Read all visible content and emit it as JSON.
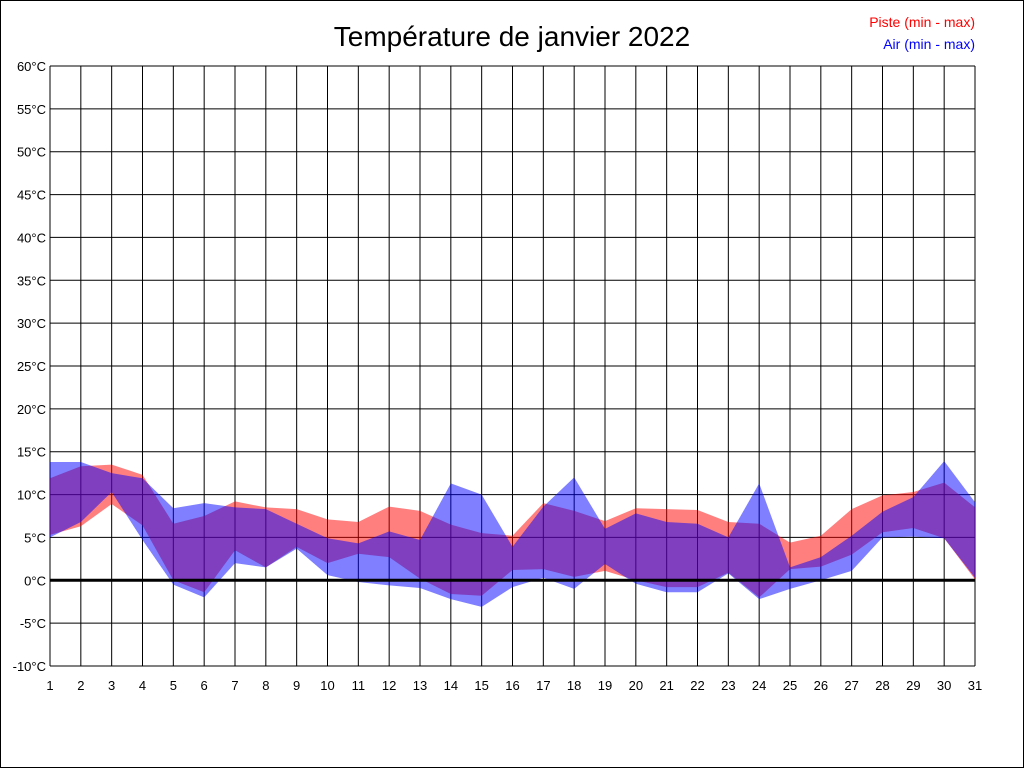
{
  "chart_data": {
    "type": "area",
    "title": "Température de janvier 2022",
    "xlabel": "",
    "ylabel": "",
    "x": [
      1,
      2,
      3,
      4,
      5,
      6,
      7,
      8,
      9,
      10,
      11,
      12,
      13,
      14,
      15,
      16,
      17,
      18,
      19,
      20,
      21,
      22,
      23,
      24,
      25,
      26,
      27,
      28,
      29,
      30,
      31
    ],
    "xlim": [
      1,
      31
    ],
    "ylim": [
      -10,
      60
    ],
    "ytick_step": 5,
    "ytick_suffix": "°C",
    "grid": true,
    "zero_line": true,
    "legend_position": "top-right",
    "series": [
      {
        "name": "Piste (min - max)",
        "color": "#ff0000",
        "min": [
          5.3,
          6.3,
          8.9,
          6.4,
          0.0,
          -1.4,
          3.5,
          1.5,
          3.9,
          2.0,
          3.1,
          2.7,
          0.2,
          -1.6,
          -1.8,
          1.2,
          1.3,
          0.4,
          1.1,
          0.0,
          -0.8,
          -0.8,
          0.9,
          -2.0,
          1.3,
          1.6,
          3.0,
          5.6,
          6.1,
          4.9,
          0.1
        ],
        "max": [
          11.9,
          13.3,
          13.5,
          12.3,
          6.6,
          7.5,
          9.2,
          8.5,
          8.3,
          7.1,
          6.8,
          8.6,
          8.1,
          6.5,
          5.5,
          5.2,
          9.0,
          8.1,
          6.9,
          8.4,
          8.3,
          8.2,
          6.8,
          6.6,
          4.4,
          5.2,
          8.3,
          9.9,
          10.3,
          11.4,
          8.5
        ]
      },
      {
        "name": "Air (min - max)",
        "color": "#0000ff",
        "min": [
          5.0,
          6.8,
          10.3,
          4.7,
          -0.5,
          -2.0,
          2.0,
          1.5,
          3.7,
          0.6,
          -0.2,
          -0.6,
          -0.9,
          -2.2,
          -3.1,
          -0.8,
          0.3,
          -1.0,
          1.9,
          -0.4,
          -1.4,
          -1.4,
          0.8,
          -2.2,
          -1.0,
          0.0,
          1.1,
          5.0,
          5.1,
          4.9,
          0.3
        ],
        "max": [
          13.8,
          13.8,
          12.5,
          11.9,
          8.4,
          9.0,
          8.5,
          8.3,
          6.6,
          4.9,
          4.3,
          5.7,
          4.7,
          11.3,
          10.0,
          3.9,
          8.6,
          12.0,
          6.0,
          7.8,
          6.8,
          6.6,
          5.0,
          11.3,
          1.5,
          2.7,
          5.2,
          8.0,
          9.7,
          13.9,
          9.1
        ]
      }
    ]
  }
}
